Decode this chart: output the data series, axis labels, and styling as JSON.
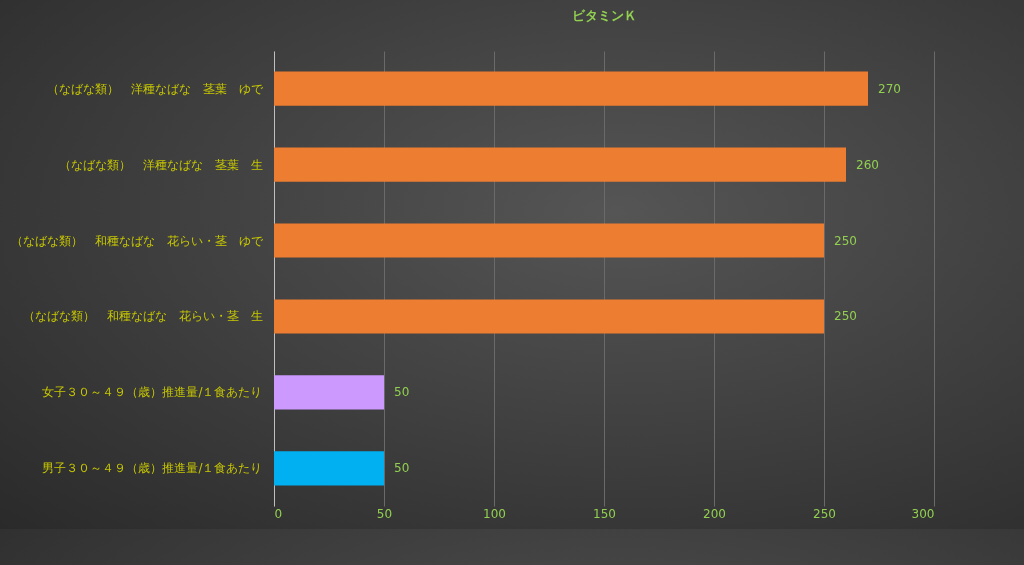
{
  "chart_data": {
    "type": "bar",
    "orientation": "horizontal",
    "title": "ビタミンＫ",
    "categories": [
      "（なばな類）　洋種なばな　茎葉　ゆで",
      "（なばな類）　洋種なばな　茎葉　生",
      "（なばな類）　和種なばな　花らい・茎　ゆで",
      "（なばな類）　和種なばな　花らい・茎　生",
      "女子３０～４９（歳）推進量/１食あたり",
      "男子３０～４９（歳）推進量/１食あたり"
    ],
    "values": [
      270,
      260,
      250,
      250,
      50,
      50
    ],
    "colors": [
      "#ed7d31",
      "#ed7d31",
      "#ed7d31",
      "#ed7d31",
      "#cc99ff",
      "#00b0f0"
    ],
    "xlim": [
      0,
      300
    ],
    "xticks": [
      0,
      50,
      100,
      150,
      200,
      250,
      300
    ],
    "grid": "x",
    "data_labels": true
  }
}
